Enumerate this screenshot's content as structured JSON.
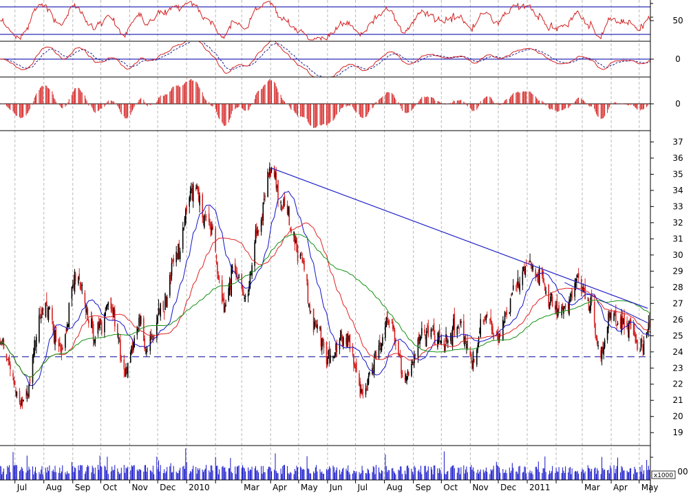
{
  "chart_data": {
    "type": "line",
    "title": "",
    "xlabel": "",
    "ylabel": "",
    "months": [
      "Jul",
      "Aug",
      "Sep",
      "Oct",
      "Nov",
      "Dec",
      "2010",
      "Mar",
      "Apr",
      "May",
      "Jun",
      "Jul",
      "Aug",
      "Sep",
      "Oct",
      "Nov",
      "Dec",
      "2011",
      "Mar",
      "Apr",
      "May"
    ],
    "x_range": [
      "2009-06-15",
      "2011-05-13"
    ],
    "grid": true,
    "panels": {
      "oscillator": {
        "ylim": [
          20,
          80
        ],
        "levels": [
          70,
          30
        ],
        "tick_labels": [
          "50"
        ],
        "color": "#d42020",
        "level_color": "#2a2ab8"
      },
      "macd": {
        "ylim": [
          -1.6,
          1.6
        ],
        "zero_tick": "0",
        "macd_color": "#d42020",
        "signal_color": "#1c1c8c",
        "zero_color": "#2a2ab8"
      },
      "histogram": {
        "ylim": [
          -1,
          1
        ],
        "zero_tick": "0",
        "color": "#d42020"
      },
      "price": {
        "ylim": [
          18.2,
          37.7
        ],
        "tick_labels": [
          "19",
          "20",
          "21",
          "22",
          "23",
          "24",
          "25",
          "26",
          "27",
          "28",
          "29",
          "30",
          "31",
          "32",
          "33",
          "34",
          "35",
          "36",
          "37"
        ],
        "support": 23.7,
        "trendline": {
          "from": [
            "2010-04-01",
            35.4
          ],
          "to": [
            "2011-05-10",
            26.7
          ]
        },
        "trendline2": {
          "from": [
            "2011-02-10",
            28.3
          ],
          "to": [
            "2011-05-10",
            25.8
          ]
        },
        "key_points": [
          [
            "2009-06-15",
            24.5
          ],
          [
            "2009-07-10",
            20.8
          ],
          [
            "2009-08-01",
            26.8
          ],
          [
            "2009-08-20",
            24.2
          ],
          [
            "2009-09-05",
            28.6
          ],
          [
            "2009-09-25",
            25.0
          ],
          [
            "2009-10-10",
            26.9
          ],
          [
            "2009-10-28",
            23.0
          ],
          [
            "2009-11-10",
            25.8
          ],
          [
            "2009-11-20",
            24.2
          ],
          [
            "2009-12-05",
            26.6
          ],
          [
            "2009-12-20",
            30.0
          ],
          [
            "2010-01-08",
            34.0
          ],
          [
            "2010-01-25",
            32.0
          ],
          [
            "2010-02-10",
            27.0
          ],
          [
            "2010-02-20",
            29.0
          ],
          [
            "2010-03-05",
            27.5
          ],
          [
            "2010-03-20",
            31.8
          ],
          [
            "2010-04-01",
            35.2
          ],
          [
            "2010-04-15",
            33.0
          ],
          [
            "2010-05-01",
            30.0
          ],
          [
            "2010-05-20",
            25.5
          ],
          [
            "2010-06-01",
            23.5
          ],
          [
            "2010-06-20",
            25.0
          ],
          [
            "2010-07-10",
            21.5
          ],
          [
            "2010-07-25",
            23.8
          ],
          [
            "2010-08-05",
            25.8
          ],
          [
            "2010-08-25",
            22.5
          ],
          [
            "2010-09-10",
            25.5
          ],
          [
            "2010-10-01",
            24.5
          ],
          [
            "2010-10-20",
            25.5
          ],
          [
            "2010-11-05",
            23.5
          ],
          [
            "2010-11-15",
            26.2
          ],
          [
            "2010-11-30",
            24.8
          ],
          [
            "2010-12-20",
            28.0
          ],
          [
            "2011-01-01",
            29.5
          ],
          [
            "2011-01-15",
            28.8
          ],
          [
            "2011-01-25",
            27.2
          ],
          [
            "2011-02-10",
            26.6
          ],
          [
            "2011-02-25",
            28.4
          ],
          [
            "2011-03-10",
            26.8
          ],
          [
            "2011-03-20",
            24.0
          ],
          [
            "2011-04-01",
            26.2
          ],
          [
            "2011-04-20",
            25.6
          ],
          [
            "2011-05-01",
            24.2
          ],
          [
            "2011-05-12",
            25.3
          ]
        ],
        "sma_colors": [
          "#1010c8",
          "#e02020",
          "#109010"
        ],
        "candle_up": "#000000",
        "candle_down": "#d42020"
      },
      "volume": {
        "unit_label": "x1000",
        "tick_label": "00",
        "color": "#1010c8"
      }
    }
  }
}
